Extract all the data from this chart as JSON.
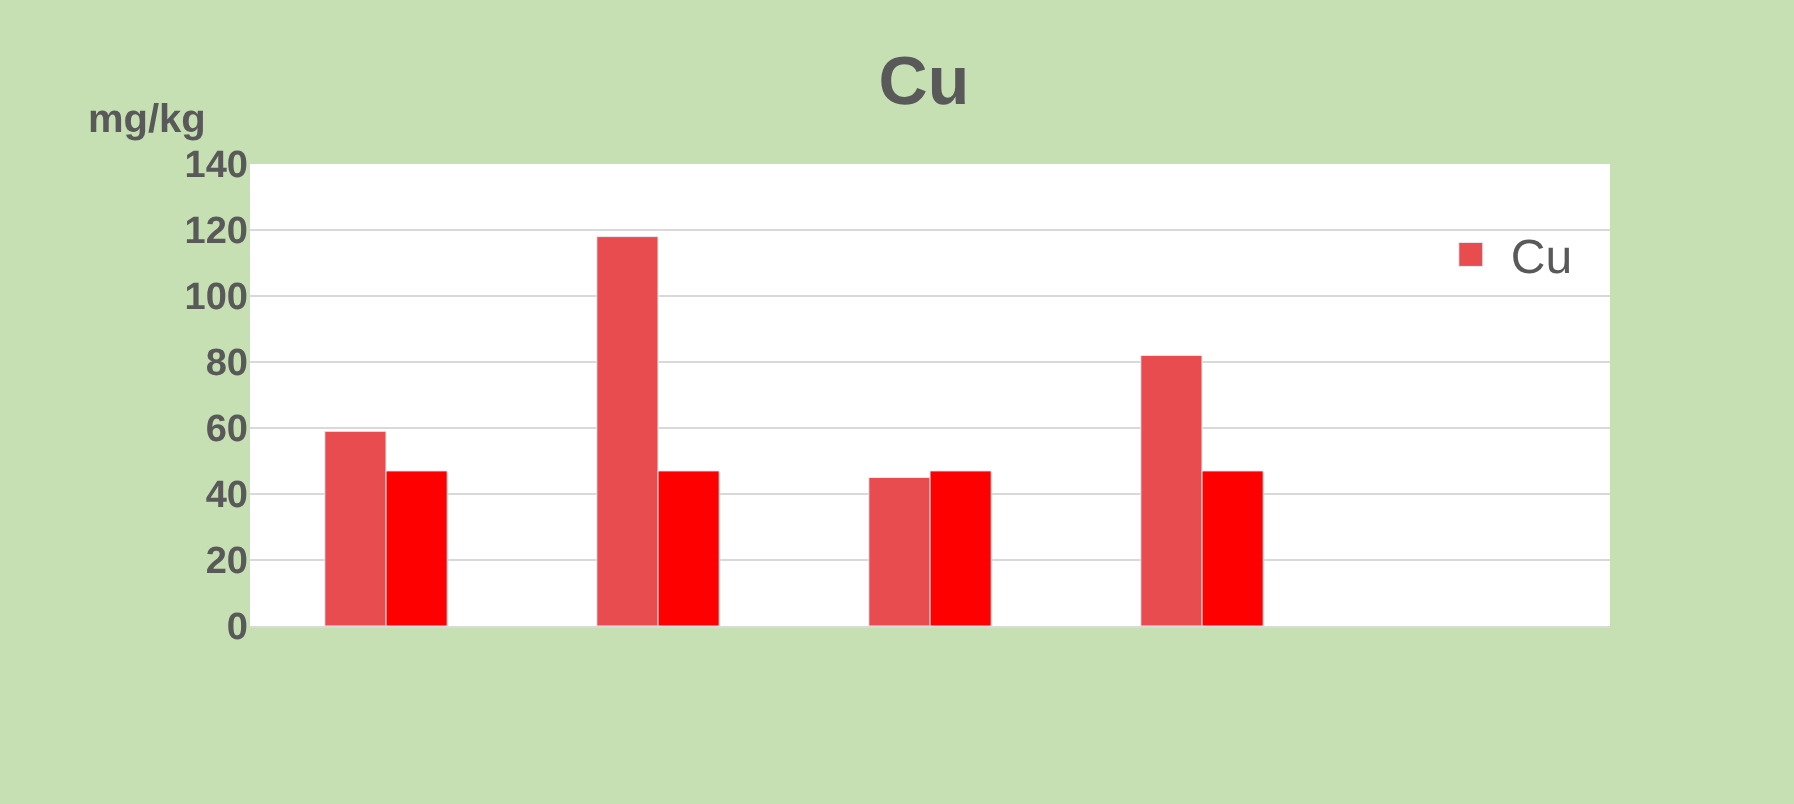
{
  "chart_data": {
    "type": "bar",
    "title": "Cu",
    "ylabel": "mg/kg",
    "categories": [
      null,
      null,
      null,
      null,
      null
    ],
    "series": [
      {
        "name": "Cu",
        "color": "#e84c4f",
        "values": [
          59,
          118,
          45,
          82,
          null
        ]
      },
      {
        "color": "#ff0000",
        "values": [
          47,
          47,
          47,
          47,
          null
        ]
      }
    ],
    "ylim": [
      0,
      140
    ],
    "yticks": [
      0,
      20,
      40,
      60,
      80,
      100,
      120,
      140
    ],
    "grid": "y",
    "legend": "top right"
  }
}
